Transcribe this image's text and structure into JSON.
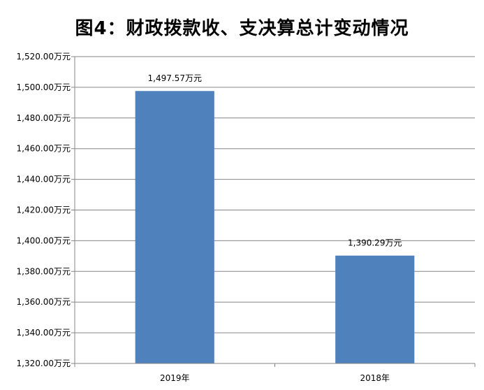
{
  "colors": {
    "bar": "#4F81BD",
    "grid": "#868686",
    "axis": "#868686"
  },
  "chart_data": {
    "type": "bar",
    "title": "图4：财政拨款收、支决算总计变动情况",
    "categories": [
      "2019年",
      "2018年"
    ],
    "values": [
      1497.57,
      1390.29
    ],
    "data_labels": [
      "1,497.57万元",
      "1,390.29万元"
    ],
    "ylim": [
      1320,
      1520
    ],
    "ytick_step": 20,
    "yticks": [
      "1,320.00万元",
      "1,340.00万元",
      "1,360.00万元",
      "1,380.00万元",
      "1,400.00万元",
      "1,420.00万元",
      "1,440.00万元",
      "1,460.00万元",
      "1,480.00万元",
      "1,500.00万元",
      "1,520.00万元"
    ],
    "grid": true,
    "legend": "none"
  }
}
